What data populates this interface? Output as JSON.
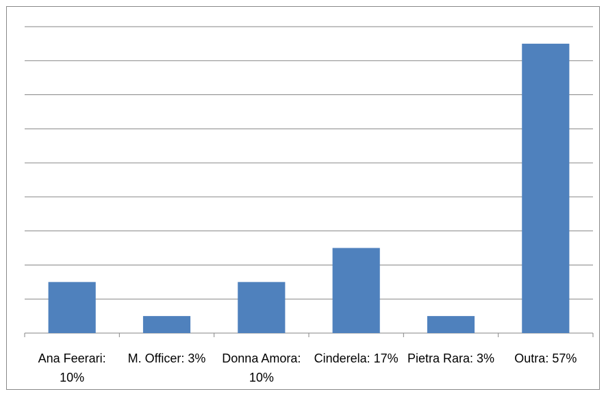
{
  "chart_data": {
    "type": "bar",
    "categories": [
      "Ana Feerari: 10%",
      "M. Officer: 3%",
      "Donna Amora: 10%",
      "Cinderela: 17%",
      "Pietra Rara: 3%",
      "Outra: 57%"
    ],
    "values": [
      3,
      1,
      3,
      5,
      1,
      17
    ],
    "color": "#4f81bd",
    "ylim": [
      0,
      18
    ],
    "yticks": [
      0,
      2,
      4,
      6,
      8,
      10,
      12,
      14,
      16,
      18
    ],
    "grid": true
  }
}
